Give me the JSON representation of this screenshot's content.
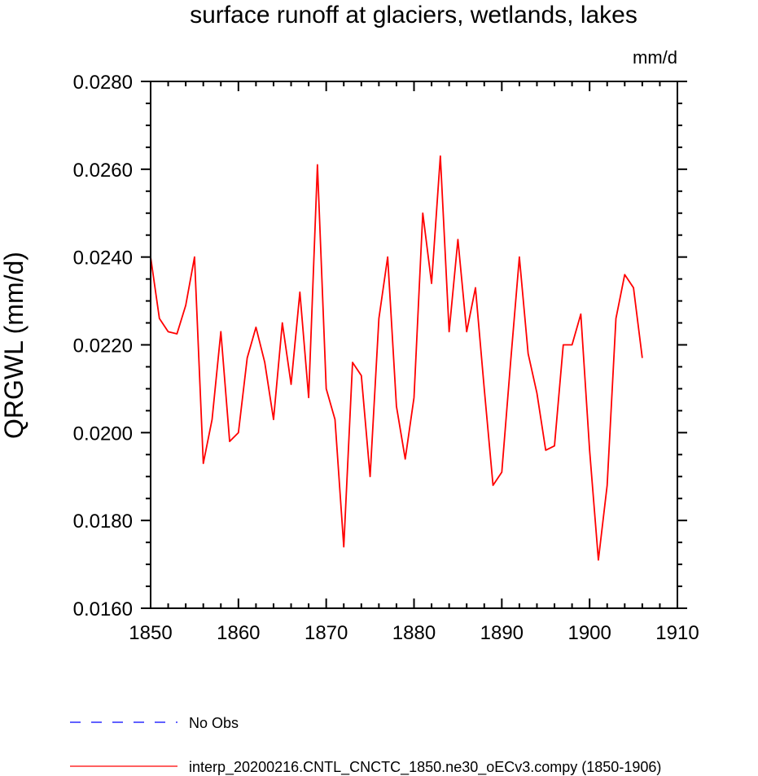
{
  "chart_data": {
    "type": "line",
    "title": "surface runoff at glaciers, wetlands, lakes",
    "units": "mm/d",
    "ylabel": "QRGWL  (mm/d)",
    "xlabel": "",
    "xlim": [
      1850,
      1910
    ],
    "ylim": [
      0.016,
      0.028
    ],
    "x_ticks": [
      1850,
      1860,
      1870,
      1880,
      1890,
      1900,
      1910
    ],
    "x_tick_labels": [
      "1850",
      "1860",
      "1870",
      "1880",
      "1890",
      "1900",
      "1910"
    ],
    "y_ticks": [
      0.016,
      0.018,
      0.02,
      0.022,
      0.024,
      0.026,
      0.028
    ],
    "y_tick_labels": [
      "0.0160",
      "0.0180",
      "0.0200",
      "0.0220",
      "0.0240",
      "0.0260",
      "0.0280"
    ],
    "grid": false,
    "legend_position": "bottom",
    "series": [
      {
        "name": "No Obs",
        "color": "#0000ff",
        "style": "dashed",
        "x": [],
        "values": []
      },
      {
        "name": "interp_20200216.CNTL_CNCTC_1850.ne30_oECv3.compy (1850-1906)",
        "color": "#ff0000",
        "style": "solid",
        "x": [
          1850,
          1851,
          1852,
          1853,
          1854,
          1855,
          1856,
          1857,
          1858,
          1859,
          1860,
          1861,
          1862,
          1863,
          1864,
          1865,
          1866,
          1867,
          1868,
          1869,
          1870,
          1871,
          1872,
          1873,
          1874,
          1875,
          1876,
          1877,
          1878,
          1879,
          1880,
          1881,
          1882,
          1883,
          1884,
          1885,
          1886,
          1887,
          1888,
          1889,
          1890,
          1891,
          1892,
          1893,
          1894,
          1895,
          1896,
          1897,
          1898,
          1899,
          1900,
          1901,
          1902,
          1903,
          1904,
          1905,
          1906
        ],
        "values": [
          0.024,
          0.0226,
          0.0223,
          0.02225,
          0.0229,
          0.024,
          0.0193,
          0.0203,
          0.0223,
          0.0198,
          0.02,
          0.0217,
          0.0224,
          0.0216,
          0.0203,
          0.0225,
          0.0211,
          0.0232,
          0.0208,
          0.0261,
          0.021,
          0.0203,
          0.0174,
          0.0216,
          0.0213,
          0.019,
          0.0226,
          0.024,
          0.0206,
          0.0194,
          0.0208,
          0.025,
          0.0234,
          0.0263,
          0.0223,
          0.0244,
          0.0223,
          0.0233,
          0.021,
          0.0188,
          0.0191,
          0.0216,
          0.024,
          0.0218,
          0.0209,
          0.0196,
          0.0197,
          0.022,
          0.022,
          0.0227,
          0.0196,
          0.0171,
          0.0188,
          0.0226,
          0.0236,
          0.0233,
          0.0217
        ]
      }
    ]
  }
}
